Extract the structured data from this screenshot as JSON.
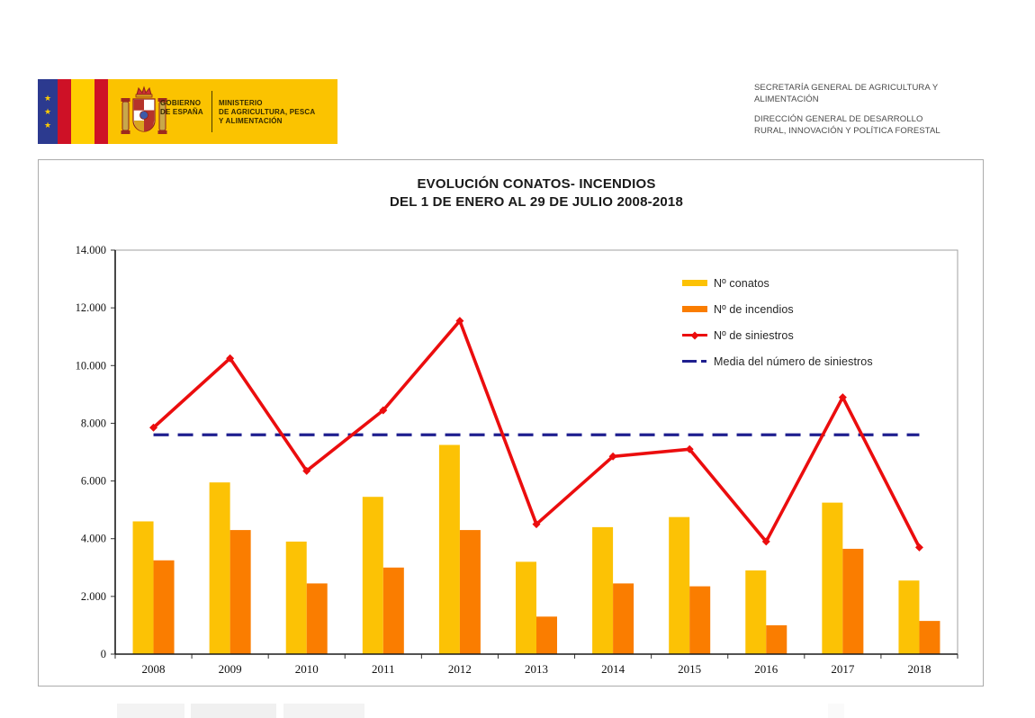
{
  "header": {
    "logo": {
      "gobierno": [
        "GOBIERNO",
        "DE ESPAÑA"
      ],
      "ministerio": [
        "MINISTERIO",
        "DE AGRICULTURA, PESCA",
        "Y ALIMENTACIÓN"
      ]
    },
    "dept": {
      "secretaria": [
        "SECRETARÍA GENERAL DE AGRICULTURA Y",
        "ALIMENTACIÓN"
      ],
      "direccion": [
        "DIRECCIÓN GENERAL DE DESARROLLO",
        "RURAL, INNOVACIÓN Y POLÍTICA FORESTAL"
      ]
    }
  },
  "chart_data": {
    "type": "bar+line combo",
    "title": [
      "EVOLUCIÓN CONATOS- INCENDIOS",
      "DEL 1 DE ENERO AL 29 DE JULIO 2008-2018"
    ],
    "categories": [
      "2008",
      "2009",
      "2010",
      "2011",
      "2012",
      "2013",
      "2014",
      "2015",
      "2016",
      "2017",
      "2018"
    ],
    "series": [
      {
        "name": "Nº conatos",
        "type": "bar",
        "color": "#FCC205",
        "values": [
          4600,
          5950,
          3900,
          5450,
          7250,
          3200,
          4400,
          4750,
          2900,
          5250,
          2550
        ]
      },
      {
        "name": "Nº de incendios",
        "type": "bar",
        "color": "#FA7D00",
        "values": [
          3250,
          4300,
          2450,
          3000,
          4300,
          1300,
          2450,
          2350,
          1000,
          3650,
          1150
        ]
      },
      {
        "name": "Nº de siniestros",
        "type": "line",
        "color": "#EB0D0E",
        "values": [
          7850,
          10250,
          6350,
          8450,
          11550,
          4500,
          6850,
          7100,
          3900,
          8900,
          3700
        ]
      },
      {
        "name": "Media del número de siniestros",
        "type": "mean-dashed-line",
        "color": "#1F1F8F",
        "value": 7600
      }
    ],
    "ylim": [
      0,
      14000
    ],
    "ytick_step": 2000,
    "ytick_labels": [
      "0",
      "2.000",
      "4.000",
      "6.000",
      "8.000",
      "10.000",
      "12.000",
      "14.000"
    ],
    "grid": false,
    "legend_position": "inside-top-right"
  }
}
